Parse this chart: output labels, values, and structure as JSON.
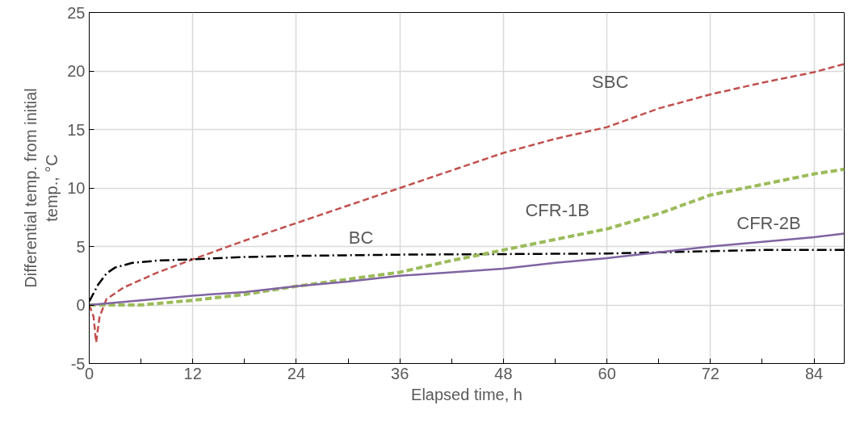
{
  "chart_data": {
    "type": "line",
    "xlabel": "Elapsed time, h",
    "ylabel": "Differential temp. from initial temp., °C",
    "xlim": [
      0,
      87.5
    ],
    "ylim": [
      -5,
      25
    ],
    "xticks": [
      0,
      {
        "value": 6,
        "label": null
      },
      12,
      {
        "value": 18,
        "label": null
      },
      24,
      {
        "value": 30,
        "label": null
      },
      36,
      {
        "value": 42,
        "label": null
      },
      48,
      {
        "value": 54,
        "label": null
      },
      60,
      {
        "value": 66,
        "label": null
      },
      72,
      {
        "value": 78,
        "label": null
      },
      84
    ],
    "yticks": [
      -5,
      0,
      5,
      10,
      15,
      20,
      25
    ],
    "grid": true,
    "series": [
      {
        "name": "SBC",
        "color": "#c0504d",
        "line_style": "dashed",
        "x": [
          0,
          0.5,
          0.8,
          1.2,
          2,
          4,
          8,
          12,
          18,
          24,
          30,
          36,
          42,
          48,
          54,
          60,
          66,
          72,
          78,
          84,
          87.5
        ],
        "values": [
          0,
          -1,
          -3.2,
          -1,
          0.5,
          1.5,
          2.8,
          3.9,
          5.5,
          7,
          8.5,
          10,
          11.5,
          13,
          14.2,
          15.2,
          16.8,
          18,
          19,
          19.9,
          20.6
        ]
      },
      {
        "name": "BC",
        "color": "#000000",
        "line_style": "dashdot",
        "x": [
          0,
          0.5,
          1,
          2,
          3,
          5,
          8,
          12,
          18,
          24,
          36,
          48,
          60,
          72,
          78,
          87.5
        ],
        "values": [
          0.3,
          1,
          1.7,
          2.7,
          3.2,
          3.6,
          3.8,
          3.9,
          4.1,
          4.2,
          4.3,
          4.35,
          4.4,
          4.6,
          4.7,
          4.7
        ]
      },
      {
        "name": "CFR-1B",
        "color": "#9bbb59",
        "line_style": "dashed",
        "x": [
          0,
          6,
          12,
          18,
          24,
          30,
          36,
          42,
          48,
          54,
          60,
          66,
          72,
          78,
          84,
          87.5
        ],
        "values": [
          0,
          0,
          0.4,
          0.9,
          1.6,
          2.2,
          2.8,
          3.8,
          4.7,
          5.6,
          6.5,
          7.8,
          9.4,
          10.3,
          11.2,
          11.6
        ]
      },
      {
        "name": "CFR-2B",
        "color": "#8064a2",
        "line_style": "solid",
        "x": [
          0,
          6,
          12,
          18,
          24,
          30,
          36,
          42,
          48,
          54,
          60,
          66,
          72,
          78,
          84,
          87.5
        ],
        "values": [
          0,
          0.4,
          0.8,
          1.1,
          1.6,
          2.0,
          2.5,
          2.8,
          3.1,
          3.6,
          4.0,
          4.5,
          5.0,
          5.4,
          5.8,
          6.1
        ]
      }
    ]
  }
}
